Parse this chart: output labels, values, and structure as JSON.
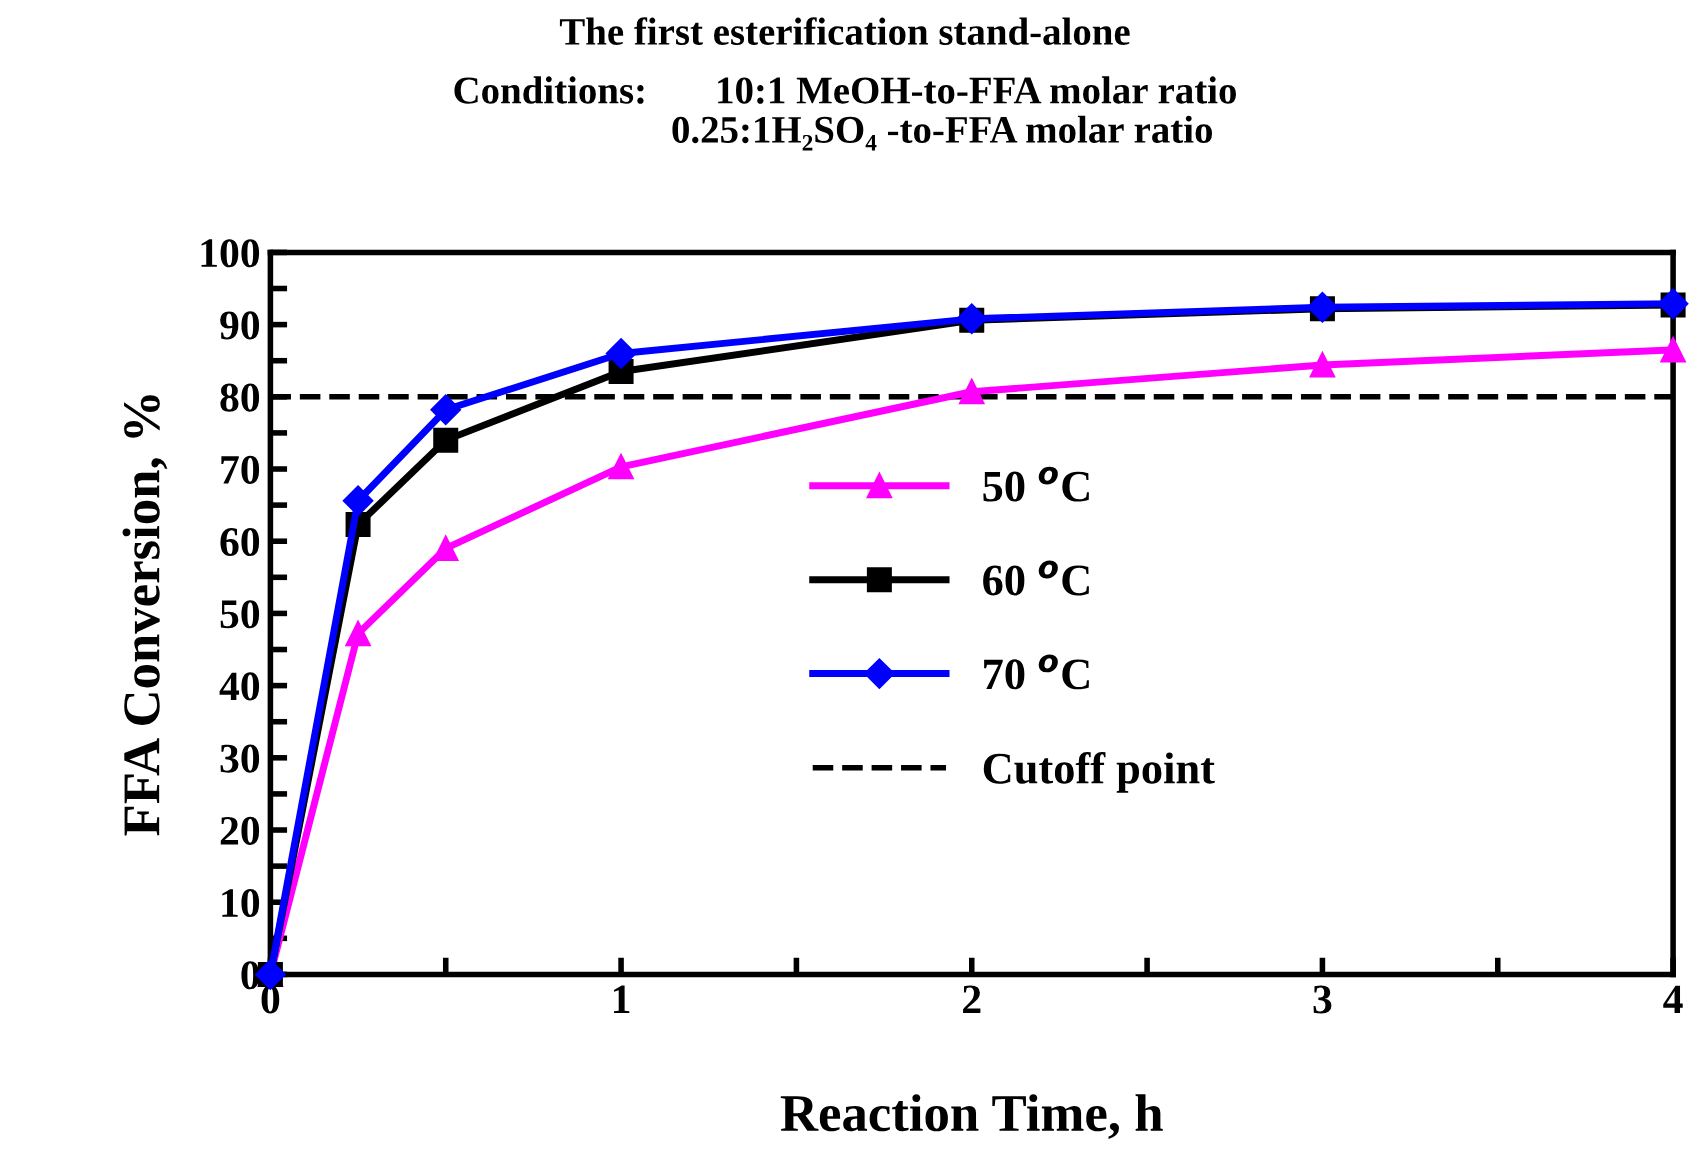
{
  "chart_data": {
    "type": "line",
    "title": "The first esterification stand-alone",
    "subtitle": "Conditions:       10:1 MeOH-to-FFA molar ratio\n                    0.25:1H₂SO₄ -to-FFA molar ratio",
    "xlabel": "Reaction Time, h",
    "ylabel": "FFA Conversion, %",
    "x": [
      0,
      0.25,
      0.5,
      1,
      2,
      3,
      4
    ],
    "series": [
      {
        "name": "50 $^{o}$C",
        "color": "#ff00ff",
        "marker": "triangle",
        "values": [
          0,
          47.2,
          59.0,
          70.3,
          80.7,
          84.4,
          86.5
        ]
      },
      {
        "name": "60 $^{o}$C",
        "color": "#000000",
        "marker": "square",
        "values": [
          0,
          62.3,
          74.0,
          83.5,
          90.6,
          92.2,
          92.7
        ]
      },
      {
        "name": "70 $^{o}$C",
        "color": "#0000ff",
        "marker": "diamond",
        "values": [
          0,
          65.6,
          78.2,
          86.0,
          90.8,
          92.4,
          92.9
        ]
      }
    ],
    "ref_lines": [
      {
        "axis": "y",
        "value": 80,
        "label": "Cutoff point",
        "color": "#000000",
        "line_style": "dashed"
      }
    ],
    "xlim": [
      0,
      4
    ],
    "xticks": [
      0,
      {
        "value": 0.5,
        "label": null
      },
      1,
      {
        "value": 1.5,
        "label": null
      },
      2,
      {
        "value": 2.5,
        "label": null
      },
      3,
      {
        "value": 3.5,
        "label": null
      },
      4
    ],
    "ylim": [
      0,
      100
    ],
    "yticks": [
      0,
      {
        "value": 5,
        "label": null
      },
      10,
      {
        "value": 15,
        "label": null
      },
      20,
      {
        "value": 25,
        "label": null
      },
      30,
      {
        "value": 35,
        "label": null
      },
      40,
      {
        "value": 45,
        "label": null
      },
      50,
      {
        "value": 55,
        "label": null
      },
      60,
      {
        "value": 65,
        "label": null
      },
      70,
      {
        "value": 75,
        "label": null
      },
      80,
      {
        "value": 85,
        "label": null
      },
      90,
      {
        "value": 95,
        "label": null
      },
      100
    ],
    "grid": false,
    "legend": "center",
    "line_style": "solid"
  }
}
